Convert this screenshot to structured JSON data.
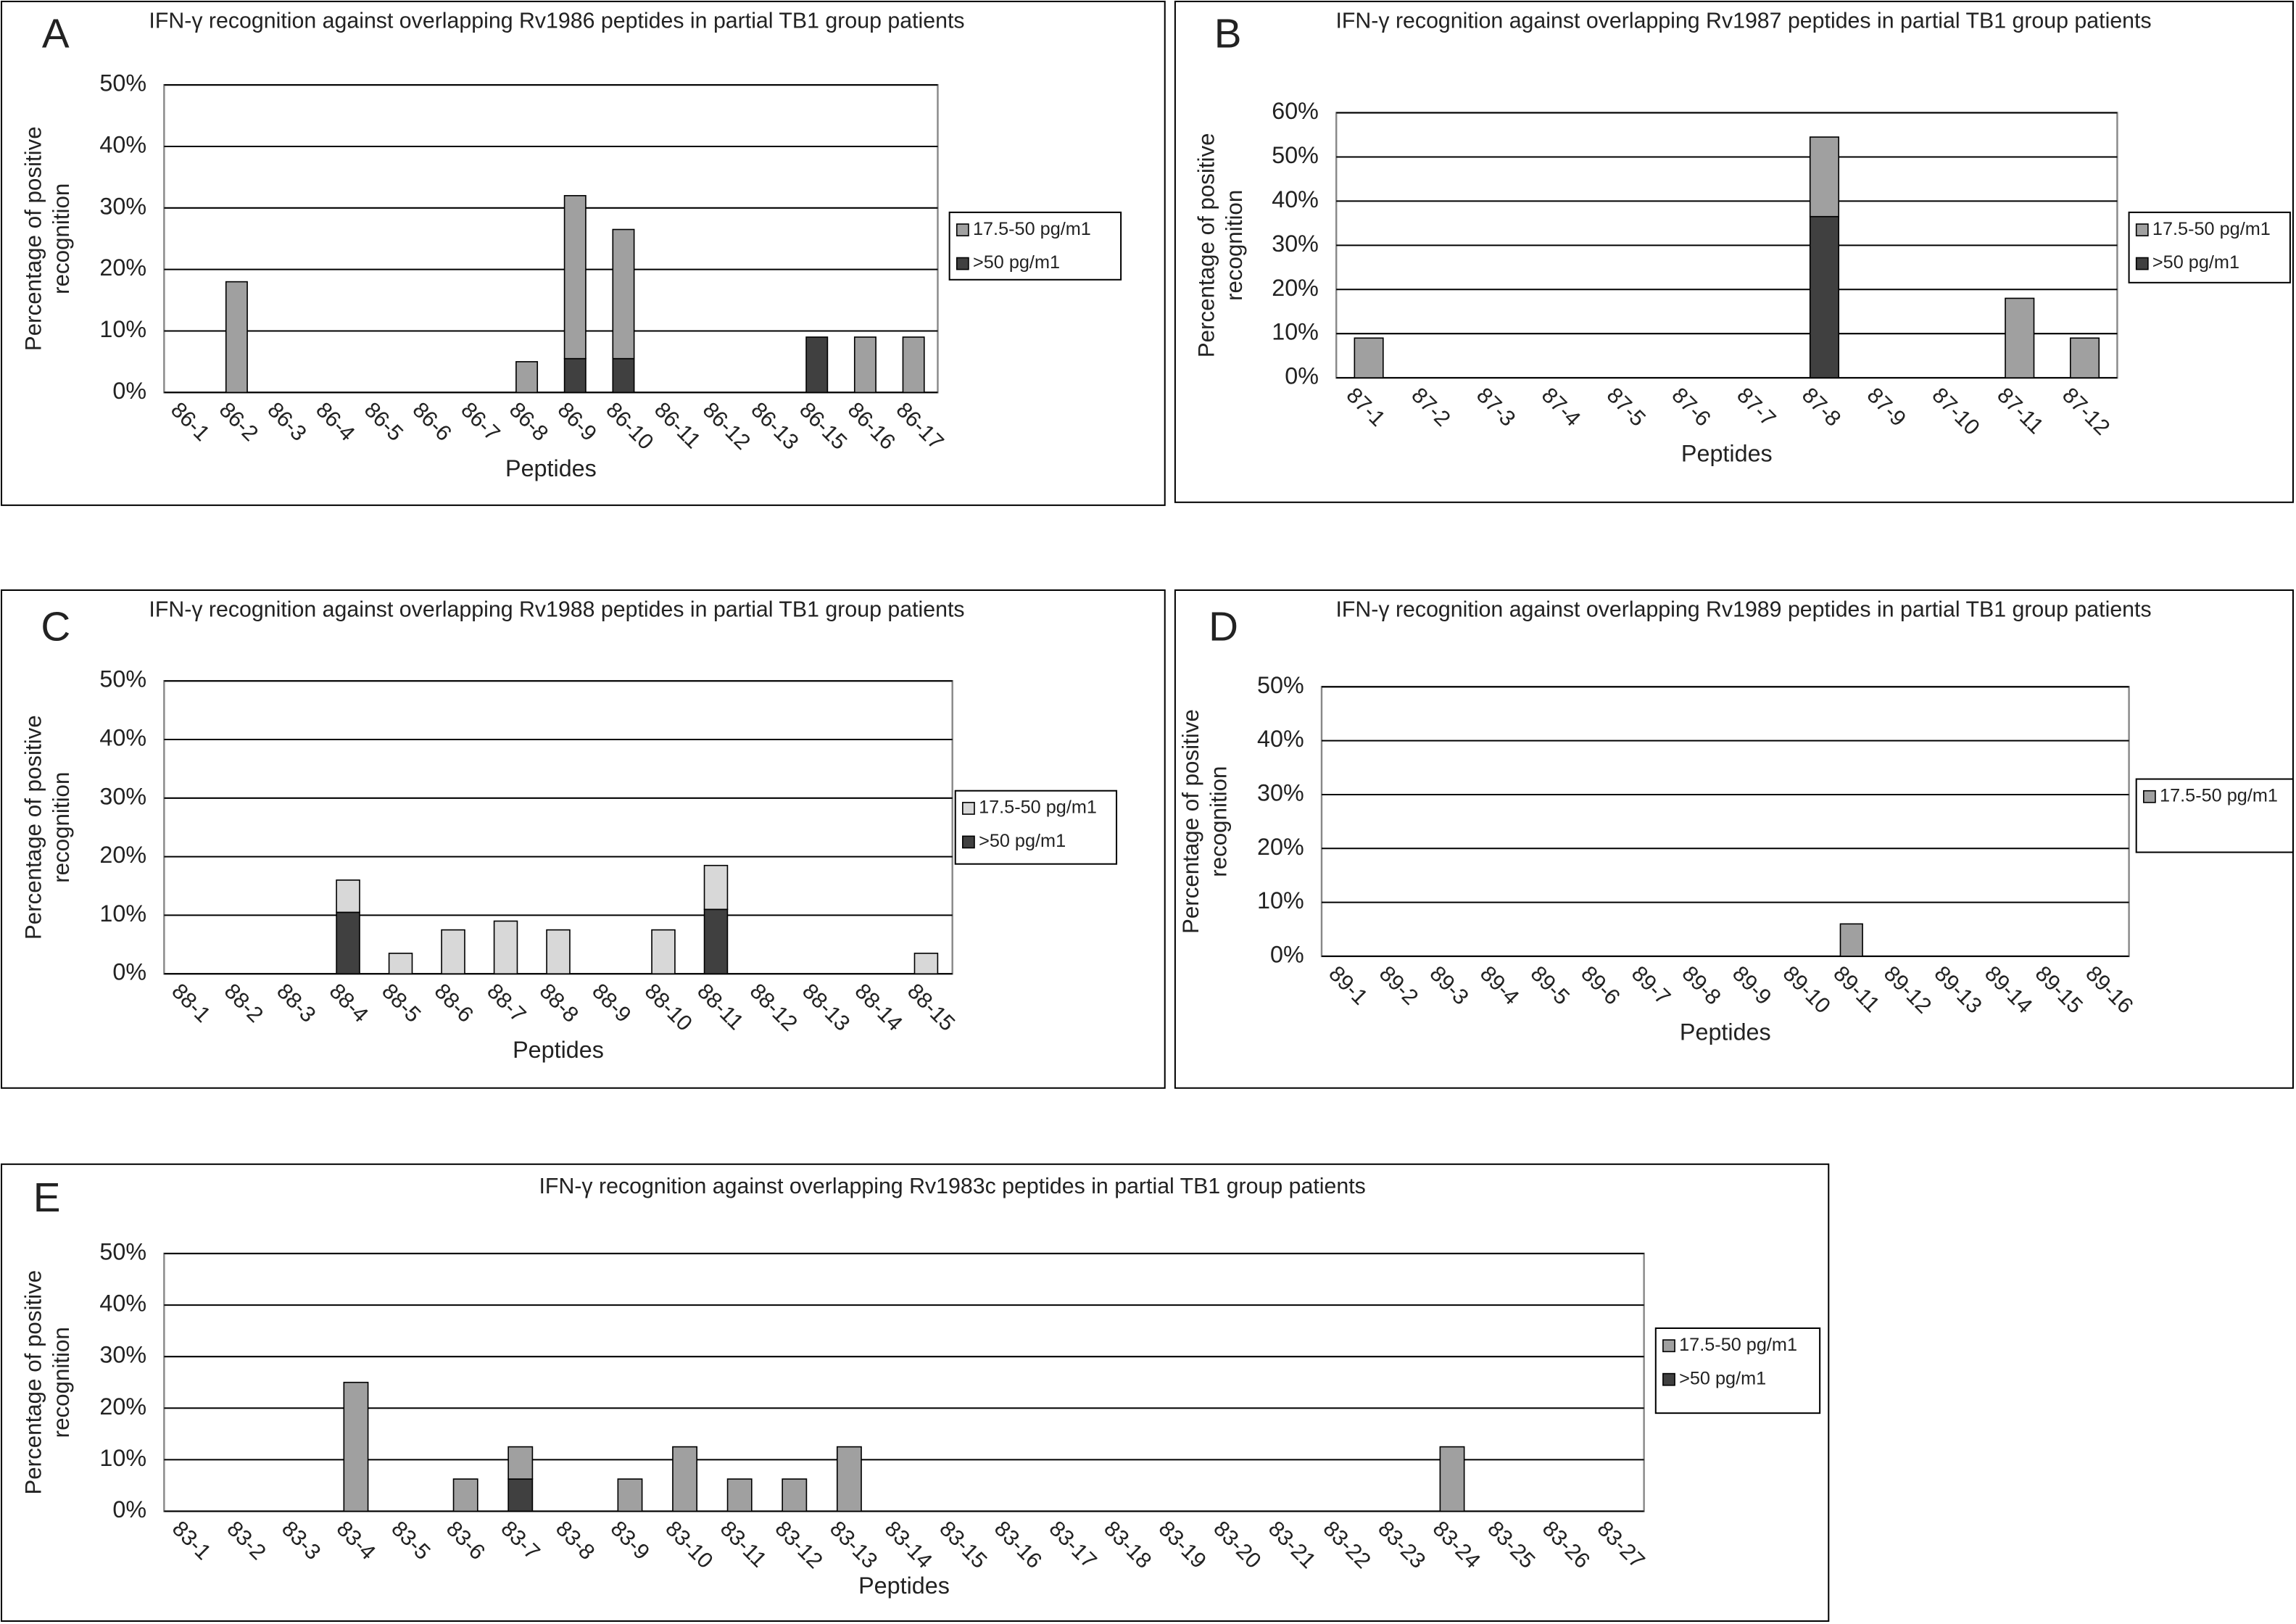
{
  "chart_data": [
    {
      "type": "bar",
      "stacked": true,
      "panel": "A",
      "title": "IFN-γ recognition against overlapping Rv1986 peptides in partial TB1 group patients",
      "x_label": "Peptides",
      "y_label": "Percentage of positive recognition",
      "categories": [
        "86-1",
        "86-2",
        "86-3",
        "86-4",
        "86-5",
        "86-6",
        "86-7",
        "86-8",
        "86-9",
        "86-10",
        "86-11",
        "86-12",
        "86-13",
        "86-15",
        "86-16",
        "86-17"
      ],
      "series": [
        {
          "name": "17.5-50 pg/m1",
          "color": "#a0a0a0",
          "values": [
            0,
            18,
            0,
            0,
            0,
            0,
            0,
            5,
            26.5,
            21,
            0,
            0,
            0,
            0,
            9,
            9
          ]
        },
        {
          "name": ">50 pg/m1",
          "color": "#404040",
          "values": [
            0,
            0,
            0,
            0,
            0,
            0,
            0,
            0,
            5.5,
            5.5,
            0,
            0,
            0,
            9,
            0,
            0
          ]
        }
      ],
      "ylim": [
        0,
        50
      ],
      "yticks": [
        {
          "value": 0,
          "label": "0%"
        },
        {
          "value": 10,
          "label": "10%"
        },
        {
          "value": 20,
          "label": "20%"
        },
        {
          "value": 30,
          "label": "30%"
        },
        {
          "value": 40,
          "label": "40%"
        },
        {
          "value": 50,
          "label": "50%"
        }
      ],
      "grid": true
    },
    {
      "type": "bar",
      "stacked": true,
      "panel": "B",
      "title": "IFN-γ recognition against overlapping Rv1987 peptides in partial TB1 group patients",
      "x_label": "Peptides",
      "y_label": "Percentage of positive recognition",
      "categories": [
        "87-1",
        "87-2",
        "87-3",
        "87-4",
        "87-5",
        "87-6",
        "87-7",
        "87-8",
        "87-9",
        "87-10",
        "87-11",
        "87-12"
      ],
      "series": [
        {
          "name": "17.5-50 pg/m1",
          "color": "#a0a0a0",
          "values": [
            9,
            0,
            0,
            0,
            0,
            0,
            0,
            18,
            0,
            0,
            18,
            9
          ]
        },
        {
          "name": ">50 pg/m1",
          "color": "#404040",
          "values": [
            0,
            0,
            0,
            0,
            0,
            0,
            0,
            36.5,
            0,
            0,
            0,
            0
          ]
        }
      ],
      "ylim": [
        0,
        60
      ],
      "yticks": [
        {
          "value": 0,
          "label": "0%"
        },
        {
          "value": 10,
          "label": "10%"
        },
        {
          "value": 20,
          "label": "20%"
        },
        {
          "value": 30,
          "label": "30%"
        },
        {
          "value": 40,
          "label": "40%"
        },
        {
          "value": 50,
          "label": "50%"
        },
        {
          "value": 60,
          "label": "60%"
        }
      ],
      "grid": true
    },
    {
      "type": "bar",
      "stacked": true,
      "panel": "C",
      "title": "IFN-γ recognition against overlapping Rv1988 peptides in partial TB1 group patients",
      "x_label": "Peptides",
      "y_label": "Percentage of positive recognition",
      "categories": [
        "88-1",
        "88-2",
        "88-3",
        "88-4",
        "88-5",
        "88-6",
        "88-7",
        "88-8",
        "88-9",
        "88-10",
        "88-11",
        "88-12",
        "88-13",
        "88-14",
        "88-15"
      ],
      "series": [
        {
          "name": "17.5-50 pg/m1",
          "color": "#d8d8d8",
          "values": [
            0,
            0,
            0,
            5.5,
            3.5,
            7.5,
            9,
            7.5,
            0,
            7.5,
            7.5,
            0,
            0,
            0,
            3.5
          ]
        },
        {
          "name": ">50 pg/m1",
          "color": "#404040",
          "values": [
            0,
            0,
            0,
            10.5,
            0,
            0,
            0,
            0,
            0,
            0,
            11,
            0,
            0,
            0,
            0
          ]
        }
      ],
      "ylim": [
        0,
        50
      ],
      "yticks": [
        {
          "value": 0,
          "label": "0%"
        },
        {
          "value": 10,
          "label": "10%"
        },
        {
          "value": 20,
          "label": "20%"
        },
        {
          "value": 30,
          "label": "30%"
        },
        {
          "value": 40,
          "label": "40%"
        },
        {
          "value": 50,
          "label": "50%"
        }
      ],
      "grid": true
    },
    {
      "type": "bar",
      "stacked": true,
      "panel": "D",
      "title": "IFN-γ recognition against overlapping Rv1989 peptides in partial TB1 group patients",
      "x_label": "Peptides",
      "y_label": "Percentage of positive recognition",
      "categories": [
        "89-1",
        "89-2",
        "89-3",
        "89-4",
        "89-5",
        "89-6",
        "89-7",
        "89-8",
        "89-9",
        "89-10",
        "89-11",
        "89-12",
        "89-13",
        "89-14",
        "89-15",
        "89-16"
      ],
      "series": [
        {
          "name": "17.5-50 pg/m1",
          "color": "#a0a0a0",
          "values": [
            0,
            0,
            0,
            0,
            0,
            0,
            0,
            0,
            0,
            0,
            6,
            0,
            0,
            0,
            0,
            0
          ]
        }
      ],
      "ylim": [
        0,
        50
      ],
      "yticks": [
        {
          "value": 0,
          "label": "0%"
        },
        {
          "value": 10,
          "label": "10%"
        },
        {
          "value": 20,
          "label": "20%"
        },
        {
          "value": 30,
          "label": "30%"
        },
        {
          "value": 40,
          "label": "40%"
        },
        {
          "value": 50,
          "label": "50%"
        }
      ],
      "grid": true
    },
    {
      "type": "bar",
      "stacked": true,
      "panel": "E",
      "title": "IFN-γ recognition against overlapping Rv1983c peptides in partial TB1 group patients",
      "x_label": "Peptides",
      "y_label": "Percentage of positive recognition",
      "categories": [
        "83-1",
        "83-2",
        "83-3",
        "83-4",
        "83-5",
        "83-6",
        "83-7",
        "83-8",
        "83-9",
        "83-10",
        "83-11",
        "83-12",
        "83-13",
        "83-14",
        "83-15",
        "83-16",
        "83-17",
        "83-18",
        "83-19",
        "83-20",
        "83-21",
        "83-22",
        "83-23",
        "83-24",
        "83-25",
        "83-26",
        "83-27"
      ],
      "series": [
        {
          "name": "17.5-50 pg/m1",
          "color": "#a0a0a0",
          "values": [
            0,
            0,
            0,
            25,
            0,
            6.25,
            6.25,
            0,
            6.25,
            12.5,
            6.25,
            6.25,
            12.5,
            0,
            0,
            0,
            0,
            0,
            0,
            0,
            0,
            0,
            0,
            12.5,
            0,
            0,
            0
          ]
        },
        {
          "name": ">50 pg/m1",
          "color": "#404040",
          "values": [
            0,
            0,
            0,
            0,
            0,
            0,
            6.25,
            0,
            0,
            0,
            0,
            0,
            0,
            0,
            0,
            0,
            0,
            0,
            0,
            0,
            0,
            0,
            0,
            0,
            0,
            0,
            0
          ]
        }
      ],
      "ylim": [
        0,
        50
      ],
      "yticks": [
        {
          "value": 0,
          "label": "0%"
        },
        {
          "value": 10,
          "label": "10%"
        },
        {
          "value": 20,
          "label": "20%"
        },
        {
          "value": 30,
          "label": "30%"
        },
        {
          "value": 40,
          "label": "40%"
        },
        {
          "value": 50,
          "label": "50%"
        }
      ],
      "grid": true
    }
  ]
}
